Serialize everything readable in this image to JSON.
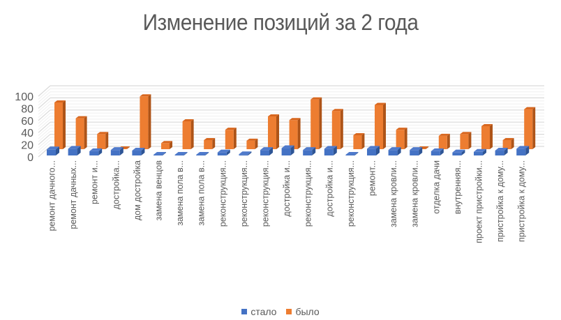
{
  "chart_data": {
    "type": "bar",
    "subtype": "3d-column",
    "title": "Изменение позиций за 2 года",
    "xlabel": "",
    "ylabel": "",
    "ylim": [
      0,
      100
    ],
    "yticks": [
      0,
      20,
      40,
      60,
      80,
      100
    ],
    "grid": true,
    "legend_position": "bottom",
    "categories": [
      "ремонт дачного...",
      "ремонт дачных...",
      "ремонт и...",
      "достройка...",
      "дом достройка",
      "замена венцов",
      "замена пола в...",
      "замена пола в...",
      "реконструкция...",
      "реконструкция...",
      "реконструкция...",
      "достройка и...",
      "реконструкция...",
      "достройка и...",
      "реконструкция...",
      "ремонт...",
      "замена кровли...",
      "замена кровли...",
      "отделка дачи",
      "внутренняя...",
      "проект пристройки...",
      "пристройка к дому...",
      "пристройка к дому..."
    ],
    "series": [
      {
        "name": "стало",
        "color": "#4472C4",
        "values": [
          10,
          11,
          7,
          9,
          8,
          1,
          1,
          0,
          5,
          2,
          9,
          12,
          9,
          11,
          1,
          11,
          9,
          9,
          7,
          5,
          6,
          8,
          11
        ]
      },
      {
        "name": "было",
        "color": "#ED7D31",
        "values": [
          77,
          51,
          25,
          1,
          87,
          10,
          46,
          15,
          32,
          14,
          54,
          48,
          82,
          63,
          23,
          73,
          32,
          1,
          22,
          25,
          38,
          15,
          66
        ]
      }
    ]
  },
  "legend": {
    "items": [
      {
        "label": "стало",
        "color": "#4472C4"
      },
      {
        "label": "было",
        "color": "#ED7D31"
      }
    ]
  }
}
